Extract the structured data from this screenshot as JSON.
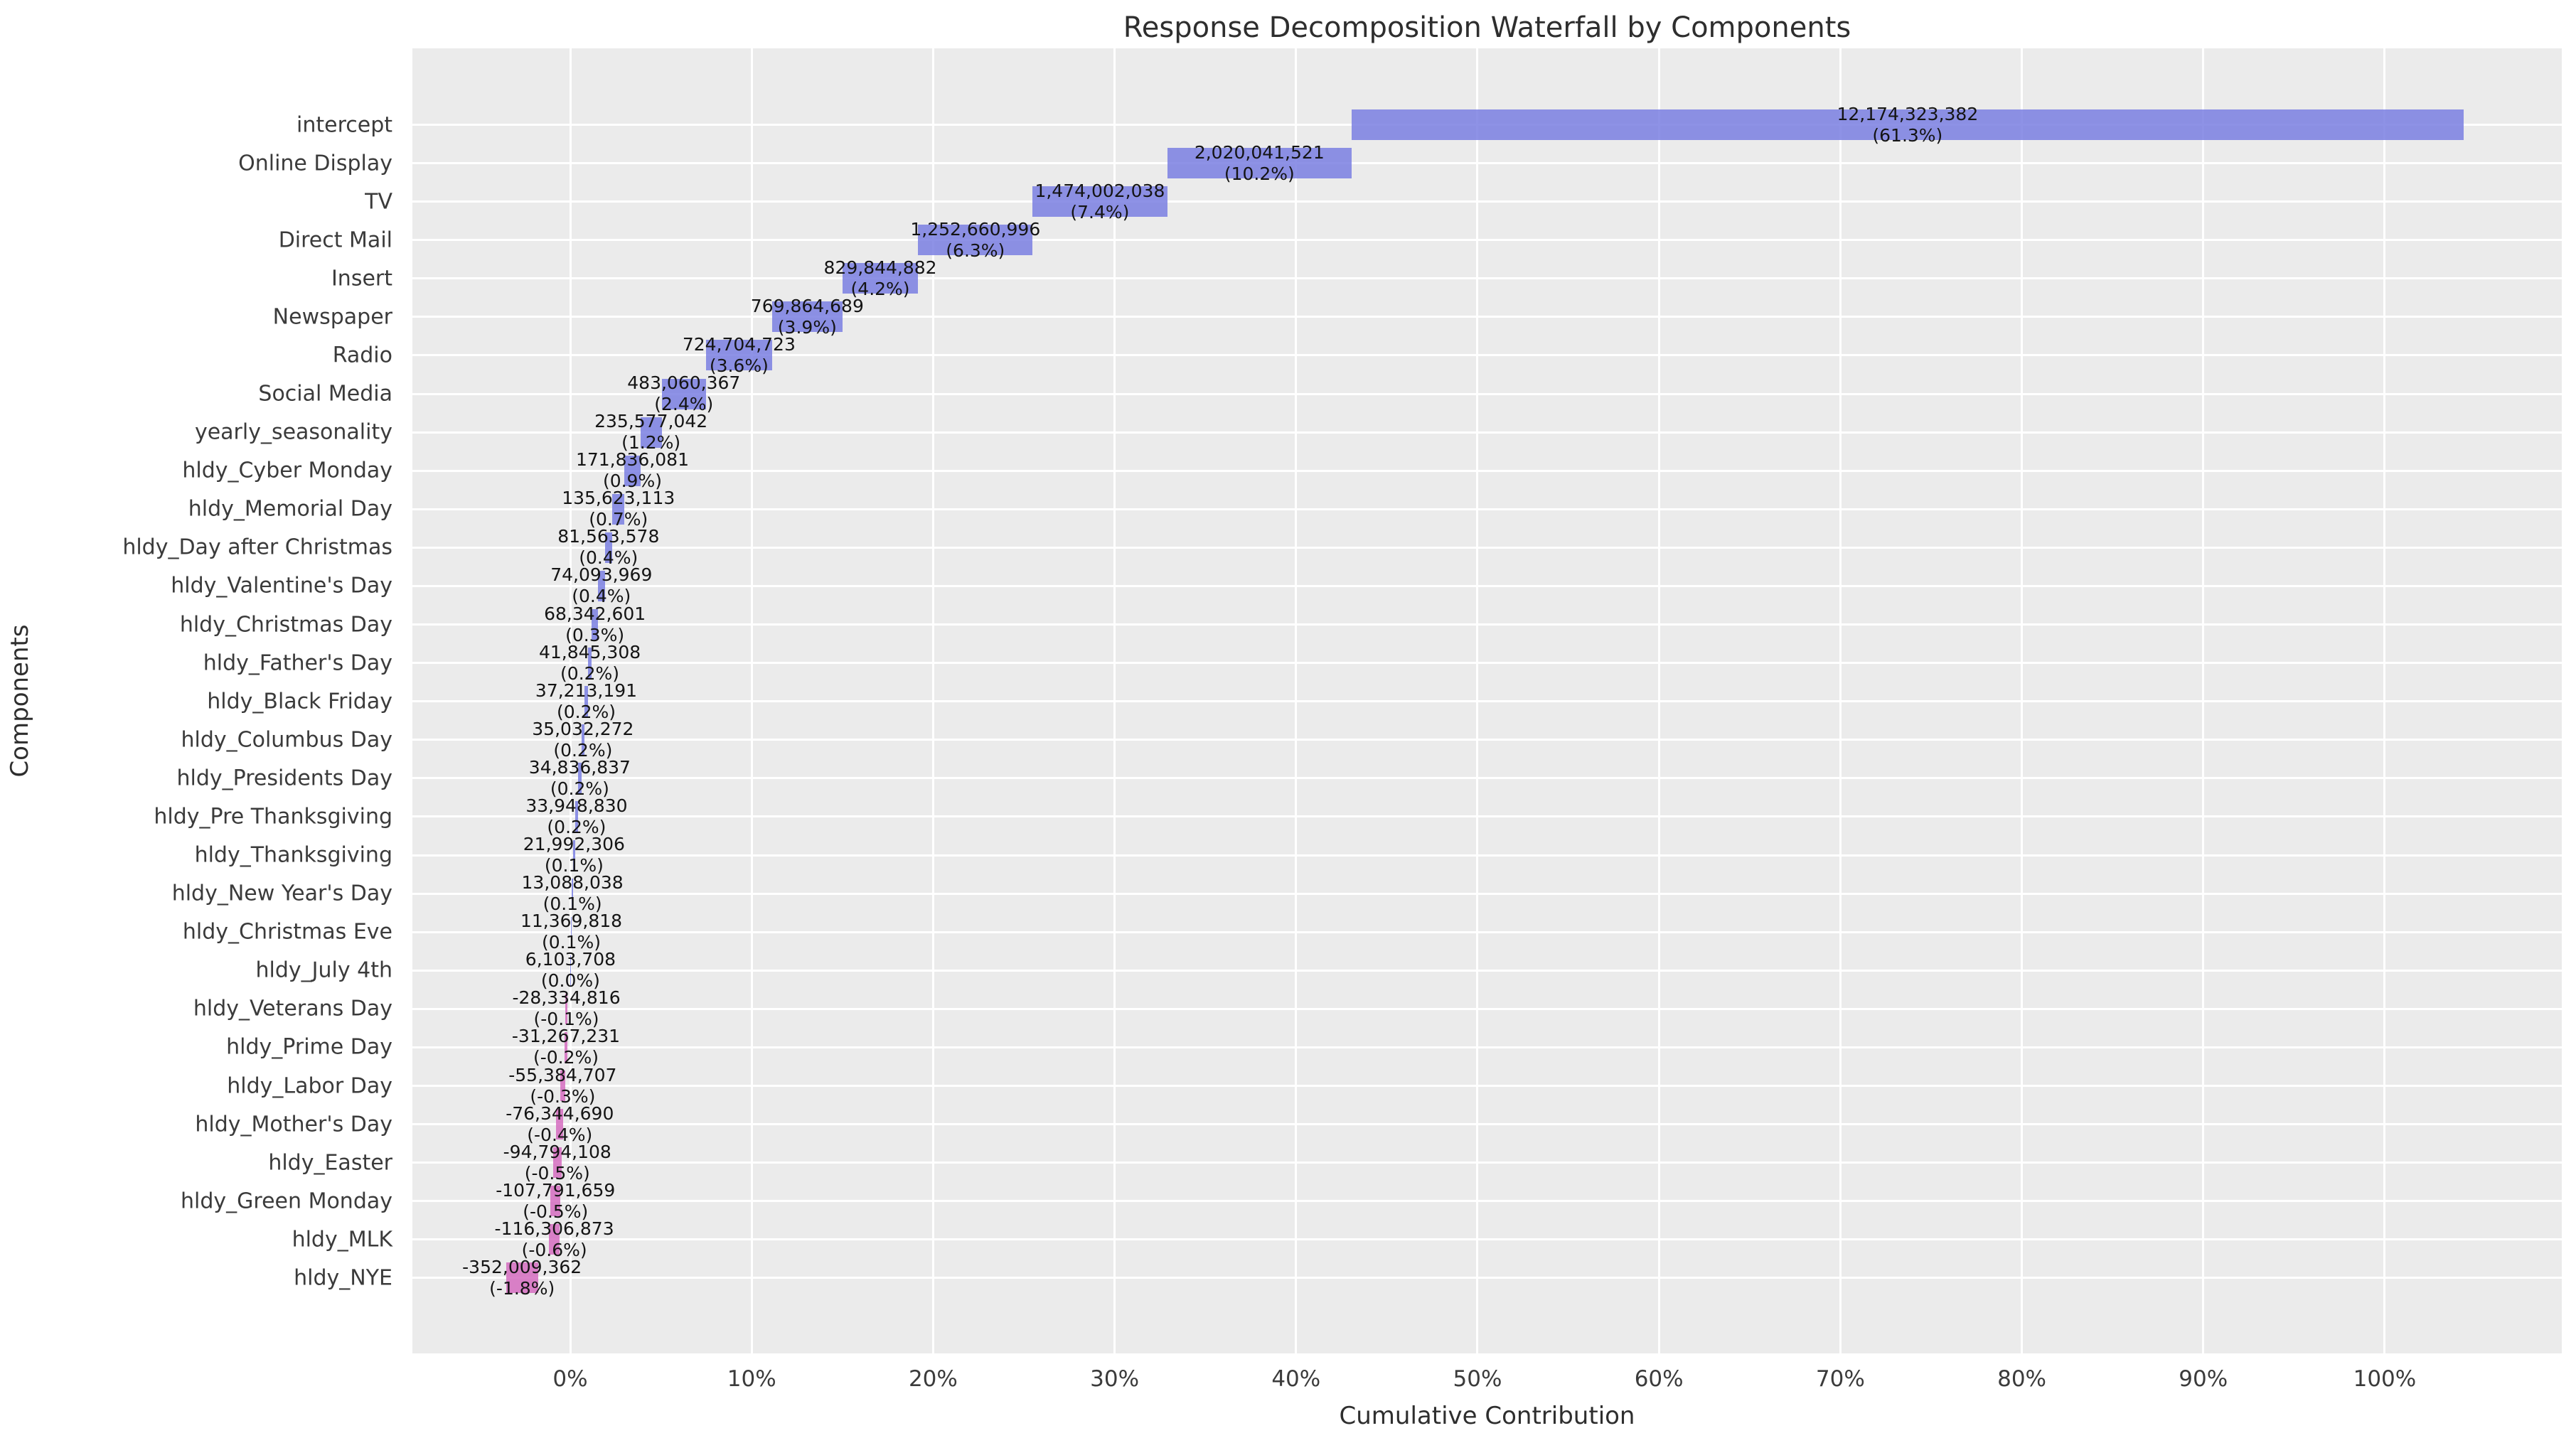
{
  "title": "Response Decomposition Waterfall by Components",
  "xlabel": "Cumulative Contribution",
  "ylabel": "Components",
  "colors": {
    "positive": "rgba(122,127,226,0.85)",
    "negative": "rgba(213,108,191,0.85)",
    "plot_bg": "#ebebeb",
    "grid": "#ffffff",
    "tick_text": "#3b3b3b",
    "bar_label_text": "#141414"
  },
  "chart_data": {
    "type": "bar",
    "subtype": "waterfall",
    "orientation": "horizontal",
    "title": "Response Decomposition Waterfall by Components",
    "xlabel": "Cumulative Contribution",
    "ylabel": "Components",
    "grid": true,
    "xlim": [
      -8.7,
      109.76
    ],
    "x_ticks": [
      "0%",
      "10%",
      "20%",
      "30%",
      "40%",
      "50%",
      "60%",
      "70%",
      "80%",
      "90%",
      "100%"
    ],
    "x_tick_values": [
      0,
      10,
      20,
      30,
      40,
      50,
      60,
      70,
      80,
      90,
      100
    ],
    "components": [
      {
        "name": "intercept",
        "value": 12174323382,
        "label": "12,174,323,382",
        "pct": "(61.3%)"
      },
      {
        "name": "Online Display",
        "value": 2020041521,
        "label": "2,020,041,521",
        "pct": "(10.2%)"
      },
      {
        "name": "TV",
        "value": 1474002038,
        "label": "1,474,002,038",
        "pct": "(7.4%)"
      },
      {
        "name": "Direct Mail",
        "value": 1252660996,
        "label": "1,252,660,996",
        "pct": "(6.3%)"
      },
      {
        "name": "Insert",
        "value": 829844882,
        "label": "829,844,882",
        "pct": "(4.2%)"
      },
      {
        "name": "Newspaper",
        "value": 769864689,
        "label": "769,864,689",
        "pct": "(3.9%)"
      },
      {
        "name": "Radio",
        "value": 724704723,
        "label": "724,704,723",
        "pct": "(3.6%)"
      },
      {
        "name": "Social Media",
        "value": 483060367,
        "label": "483,060,367",
        "pct": "(2.4%)"
      },
      {
        "name": "yearly_seasonality",
        "value": 235577042,
        "label": "235,577,042",
        "pct": "(1.2%)"
      },
      {
        "name": "hldy_Cyber Monday",
        "value": 171836081,
        "label": "171,836,081",
        "pct": "(0.9%)"
      },
      {
        "name": "hldy_Memorial Day",
        "value": 135623113,
        "label": "135,623,113",
        "pct": "(0.7%)"
      },
      {
        "name": "hldy_Day after Christmas",
        "value": 81563578,
        "label": "81,563,578",
        "pct": "(0.4%)"
      },
      {
        "name": "hldy_Valentine's Day",
        "value": 74093969,
        "label": "74,093,969",
        "pct": "(0.4%)"
      },
      {
        "name": "hldy_Christmas Day",
        "value": 68342601,
        "label": "68,342,601",
        "pct": "(0.3%)"
      },
      {
        "name": "hldy_Father's Day",
        "value": 41845308,
        "label": "41,845,308",
        "pct": "(0.2%)"
      },
      {
        "name": "hldy_Black Friday",
        "value": 37213191,
        "label": "37,213,191",
        "pct": "(0.2%)"
      },
      {
        "name": "hldy_Columbus Day",
        "value": 35032272,
        "label": "35,032,272",
        "pct": "(0.2%)"
      },
      {
        "name": "hldy_Presidents Day",
        "value": 34836837,
        "label": "34,836,837",
        "pct": "(0.2%)"
      },
      {
        "name": "hldy_Pre Thanksgiving",
        "value": 33948830,
        "label": "33,948,830",
        "pct": "(0.2%)"
      },
      {
        "name": "hldy_Thanksgiving",
        "value": 21992306,
        "label": "21,992,306",
        "pct": "(0.1%)"
      },
      {
        "name": "hldy_New Year's Day",
        "value": 13088038,
        "label": "13,088,038",
        "pct": "(0.1%)"
      },
      {
        "name": "hldy_Christmas Eve",
        "value": 11369818,
        "label": "11,369,818",
        "pct": "(0.1%)"
      },
      {
        "name": "hldy_July 4th",
        "value": 6103708,
        "label": "6,103,708",
        "pct": "(0.0%)"
      },
      {
        "name": "hldy_Veterans Day",
        "value": -28334816,
        "label": "-28,334,816",
        "pct": "(-0.1%)"
      },
      {
        "name": "hldy_Prime Day",
        "value": -31267231,
        "label": "-31,267,231",
        "pct": "(-0.2%)"
      },
      {
        "name": "hldy_Labor Day",
        "value": -55384707,
        "label": "-55,384,707",
        "pct": "(-0.3%)"
      },
      {
        "name": "hldy_Mother's Day",
        "value": -76344690,
        "label": "-76,344,690",
        "pct": "(-0.4%)"
      },
      {
        "name": "hldy_Easter",
        "value": -94794108,
        "label": "-94,794,108",
        "pct": "(-0.5%)"
      },
      {
        "name": "hldy_Green Monday",
        "value": -107791659,
        "label": "-107,791,659",
        "pct": "(-0.5%)"
      },
      {
        "name": "hldy_MLK",
        "value": -116306873,
        "label": "-116,306,873",
        "pct": "(-0.6%)"
      },
      {
        "name": "hldy_NYE",
        "value": -352009362,
        "label": "-352,009,362",
        "pct": "(-1.8%)"
      }
    ]
  }
}
